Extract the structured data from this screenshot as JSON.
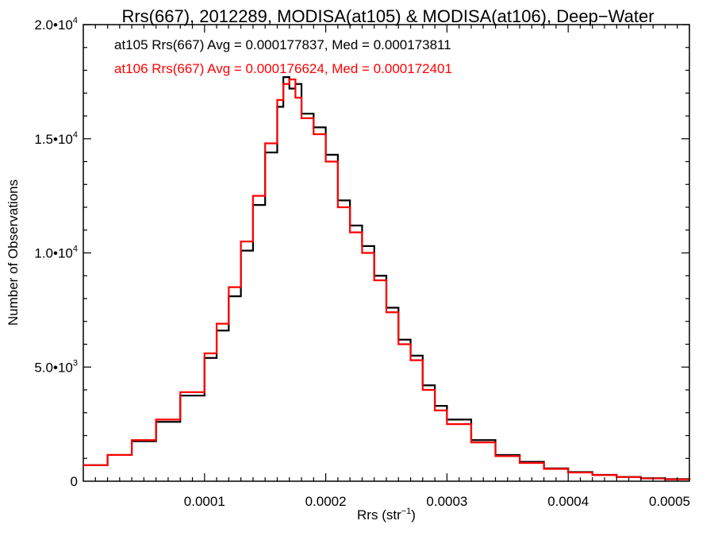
{
  "chart_data": {
    "type": "line",
    "step": true,
    "title": "Rrs(667), 2012289, MODISA(at105) & MODISA(at106), Deep−Water",
    "xlabel": "Rrs (str",
    "xlabel_sup": "−1",
    "xlabel_end": ")",
    "ylabel": "Number of Observations",
    "xlim": [
      0.0,
      0.0005
    ],
    "ylim": [
      0,
      20000
    ],
    "grid": false,
    "x_ticks": [
      {
        "value": 0.0001,
        "label": "0.0001"
      },
      {
        "value": 0.0002,
        "label": "0.0002"
      },
      {
        "value": 0.0003,
        "label": "0.0003"
      },
      {
        "value": 0.0004,
        "label": "0.0004"
      },
      {
        "value": 0.0005,
        "label": "0.0005"
      }
    ],
    "y_ticks": [
      {
        "value": 0,
        "mant": "0",
        "exp": ""
      },
      {
        "value": 5000,
        "mant": "5.0•10",
        "exp": "3"
      },
      {
        "value": 10000,
        "mant": "1.0•10",
        "exp": "4"
      },
      {
        "value": 15000,
        "mant": "1.5•10",
        "exp": "4"
      },
      {
        "value": 20000,
        "mant": "2.0•10",
        "exp": "4"
      }
    ],
    "legend_placement": "top-left",
    "series": [
      {
        "name": "at105 Rrs(667) Avg = 0.000177837, Med = 0.000173811",
        "color": "#000000",
        "x": [
          0.0,
          2e-05,
          4e-05,
          6e-05,
          8e-05,
          0.0001,
          0.00011,
          0.00012,
          0.00013,
          0.00014,
          0.00015,
          0.00016,
          0.000165,
          0.00017,
          0.000175,
          0.00018,
          0.00019,
          0.0002,
          0.00021,
          0.00022,
          0.00023,
          0.00024,
          0.00025,
          0.00026,
          0.00027,
          0.00028,
          0.00029,
          0.0003,
          0.00032,
          0.00034,
          0.00036,
          0.00038,
          0.0004,
          0.00042,
          0.00044,
          0.00046,
          0.00048,
          0.0005
        ],
        "y": [
          700,
          1150,
          1750,
          2600,
          3750,
          5400,
          6600,
          8100,
          10100,
          12100,
          14400,
          16400,
          17700,
          17200,
          17400,
          16100,
          15500,
          14300,
          12300,
          11200,
          10300,
          9000,
          7600,
          6200,
          5500,
          4200,
          3300,
          2700,
          1800,
          1150,
          850,
          560,
          400,
          280,
          190,
          130,
          90,
          60
        ]
      },
      {
        "name": "at106 Rrs(667) Avg = 0.000176624, Med = 0.000172401",
        "color": "#ff0000",
        "x": [
          0.0,
          2e-05,
          4e-05,
          6e-05,
          8e-05,
          0.0001,
          0.00011,
          0.00012,
          0.00013,
          0.00014,
          0.00015,
          0.00016,
          0.000165,
          0.00017,
          0.000175,
          0.00018,
          0.00019,
          0.0002,
          0.00021,
          0.00022,
          0.00023,
          0.00024,
          0.00025,
          0.00026,
          0.00027,
          0.00028,
          0.00029,
          0.0003,
          0.00032,
          0.00034,
          0.00036,
          0.00038,
          0.0004,
          0.00042,
          0.00044,
          0.00046,
          0.00048,
          0.0005
        ],
        "y": [
          700,
          1150,
          1800,
          2700,
          3900,
          5600,
          6900,
          8500,
          10500,
          12500,
          14800,
          16700,
          17400,
          17600,
          16800,
          15900,
          15200,
          14000,
          12000,
          10900,
          10000,
          8800,
          7400,
          6000,
          5300,
          4000,
          3100,
          2500,
          1700,
          1100,
          800,
          540,
          380,
          270,
          180,
          120,
          80,
          50
        ]
      }
    ]
  }
}
